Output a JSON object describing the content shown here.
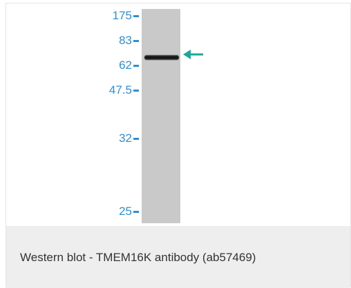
{
  "blot": {
    "markers": [
      "175",
      "83",
      "62",
      "47.5",
      "32",
      "25"
    ],
    "arrow_color": "#1aa89a",
    "marker_color": "#2b8fd6"
  },
  "caption": "Western blot - TMEM16K antibody (ab57469)"
}
